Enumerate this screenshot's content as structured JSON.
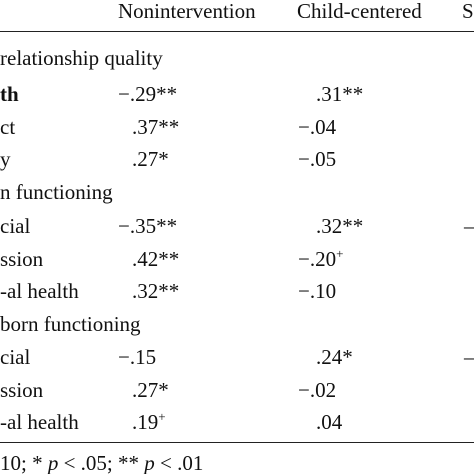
{
  "table": {
    "headers": [
      "Nonintervention",
      "Child-centered",
      "S"
    ],
    "sections": [
      {
        "title": "relationship quality",
        "rows": [
          {
            "label": "th",
            "nonintervention": "−.29**",
            "child_centered": ".31**",
            "third": ""
          },
          {
            "label": "ct",
            "nonintervention": ".37**",
            "child_centered": "−.04",
            "third": ""
          },
          {
            "label": "y",
            "nonintervention": ".27*",
            "child_centered": "−.05",
            "third": ""
          }
        ]
      },
      {
        "title": "n functioning",
        "rows": [
          {
            "label": "cial",
            "nonintervention": "−.35**",
            "child_centered": ".32**",
            "third": "–"
          },
          {
            "label": "ssion",
            "nonintervention": ".42**",
            "child_centered": "−.20",
            "child_centered_sup": "+",
            "third": ""
          },
          {
            "label": "-al health",
            "nonintervention": ".32**",
            "child_centered": "−.10",
            "third": ""
          }
        ]
      },
      {
        "title": "born functioning",
        "rows": [
          {
            "label": "cial",
            "nonintervention": "−.15",
            "child_centered": ".24*",
            "third": "–"
          },
          {
            "label": "ssion",
            "nonintervention": ".27*",
            "child_centered": "−.02",
            "third": ""
          },
          {
            "label": "-al health",
            "nonintervention": ".19",
            "nonintervention_sup": "+",
            "child_centered": ".04",
            "third": ""
          }
        ]
      }
    ],
    "footnote": {
      "part1": "10; * ",
      "p1": "p",
      "part2": " < .05; ** ",
      "p2": "p",
      "part3": " < .01"
    }
  }
}
